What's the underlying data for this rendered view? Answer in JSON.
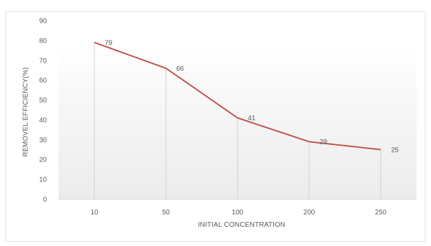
{
  "chart_data": {
    "type": "line",
    "categories": [
      "10",
      "50",
      "100",
      "200",
      "250"
    ],
    "series": [
      {
        "values": [
          79,
          66,
          41,
          29,
          25
        ],
        "color": "#c0504d"
      }
    ],
    "data_labels": [
      "79",
      "66",
      "41",
      "29",
      "25"
    ],
    "xlabel": "INITIAL CONCENTRATION",
    "ylabel": "REMOVEL EFFICIENCY(%)",
    "ylim": [
      0,
      90
    ],
    "y_ticks": [
      "0",
      "10",
      "20",
      "30",
      "40",
      "50",
      "60",
      "70",
      "80",
      "90"
    ],
    "grid": false,
    "drop_lines": true,
    "plot_background": "gradient white to light gray"
  }
}
